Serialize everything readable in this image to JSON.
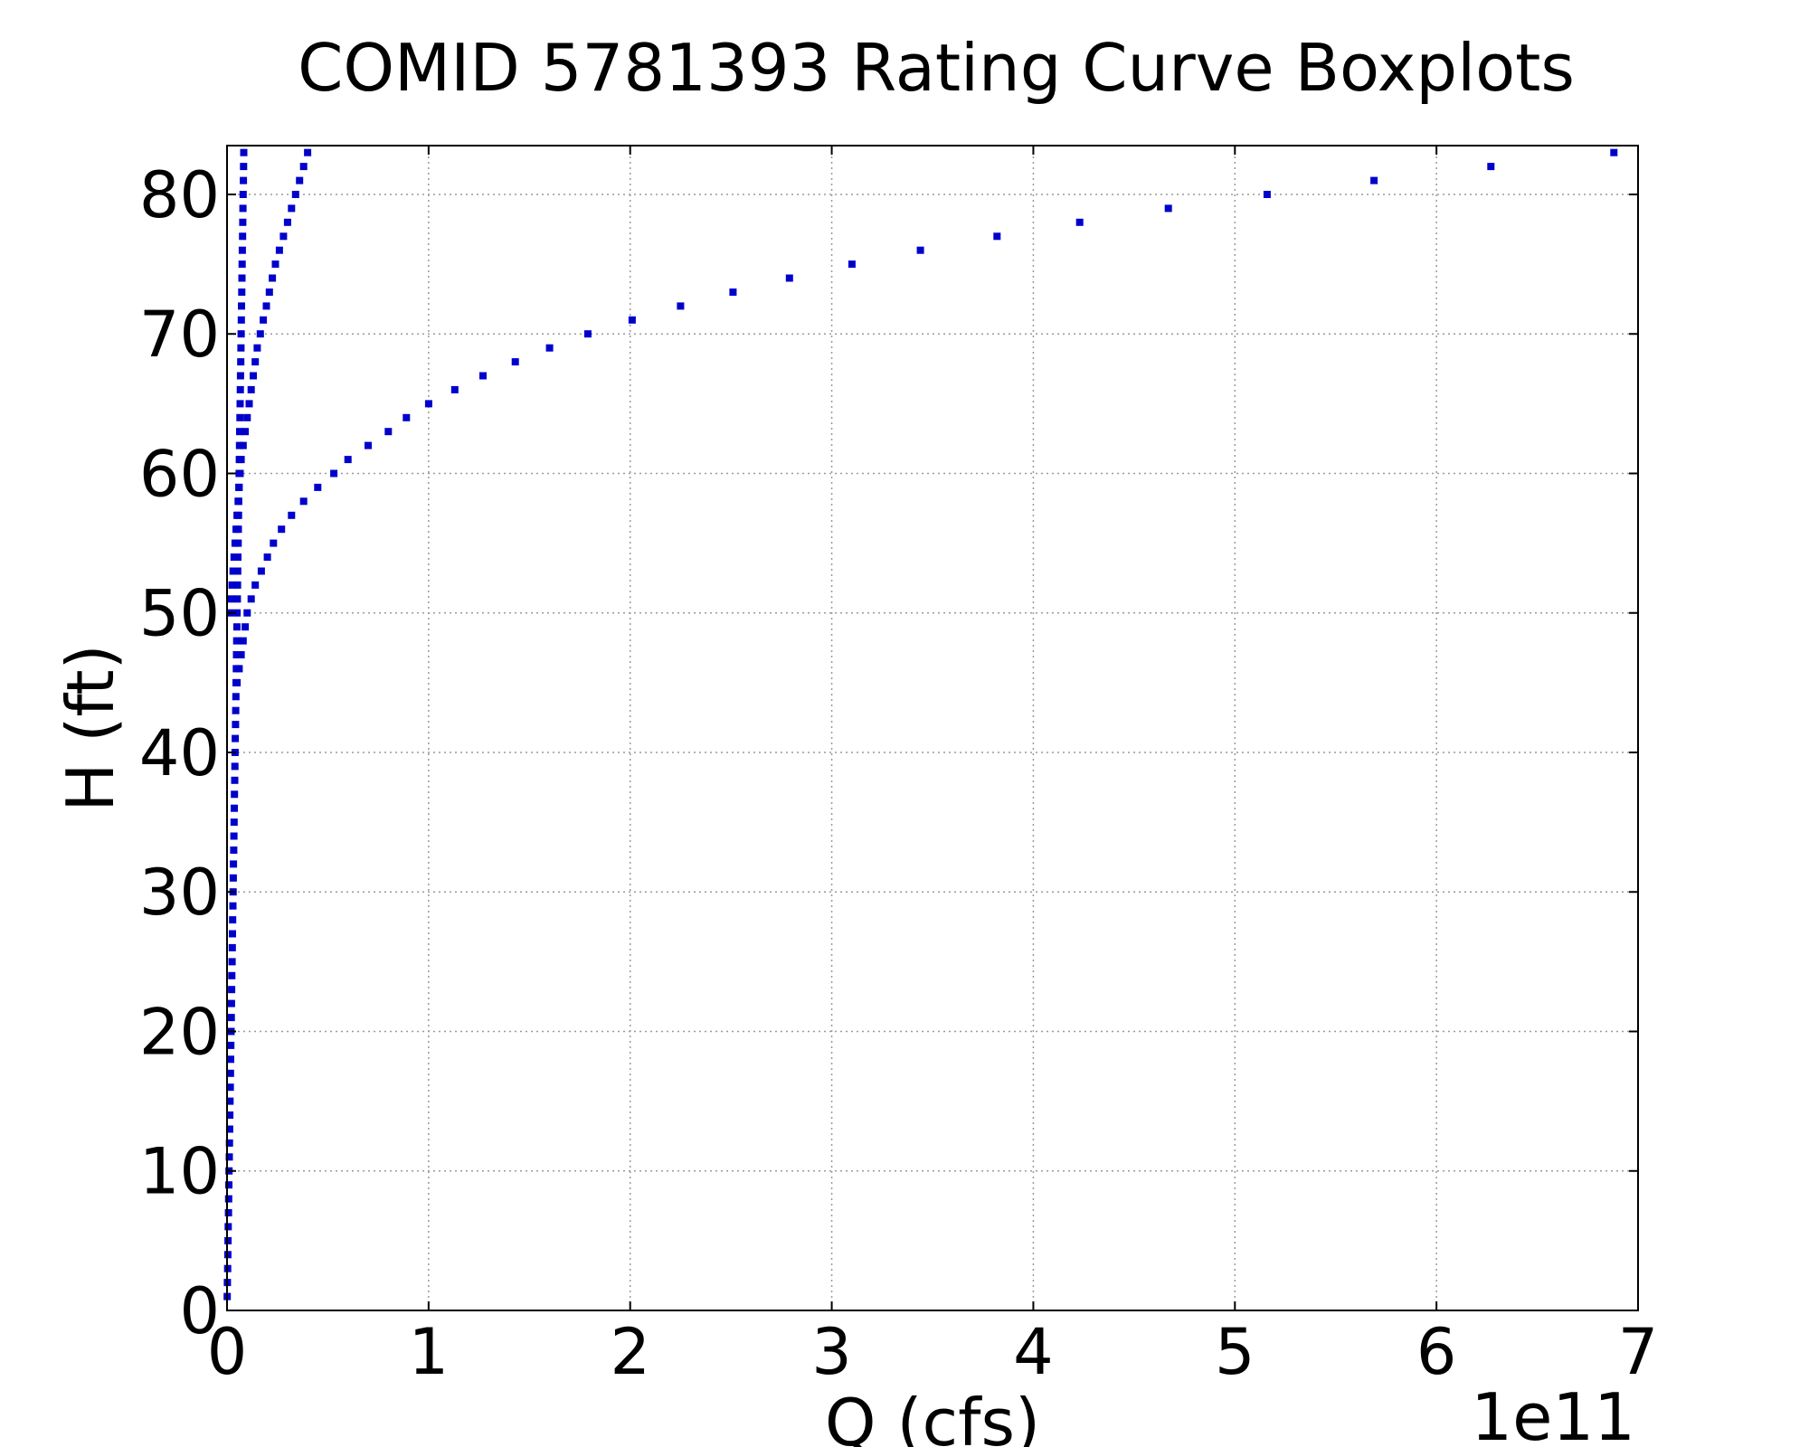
{
  "chart_data": {
    "type": "scatter",
    "title": "COMID 5781393 Rating Curve Boxplots",
    "xlabel": "Q (cfs)",
    "ylabel": "H (ft)",
    "x_offset_label": "1e11",
    "xlim": [
      0,
      7
    ],
    "ylim": [
      0,
      83.5
    ],
    "xticks": [
      "0",
      "1",
      "2",
      "3",
      "4",
      "5",
      "6",
      "7"
    ],
    "yticks": [
      "0",
      "10",
      "20",
      "30",
      "40",
      "50",
      "60",
      "70",
      "80"
    ],
    "grid": true,
    "marker_color": "#0000cc",
    "series": [
      {
        "x": [
          0.001,
          0.002,
          0.003,
          0.004,
          0.005,
          0.006,
          0.007,
          0.008,
          0.009,
          0.01,
          0.011,
          0.012,
          0.013,
          0.014,
          0.015,
          0.016,
          0.017,
          0.018,
          0.019,
          0.02,
          0.021,
          0.022,
          0.023,
          0.024,
          0.025,
          0.026,
          0.027,
          0.028,
          0.029,
          0.03,
          0.031,
          0.032,
          0.033,
          0.034,
          0.035,
          0.036,
          0.037,
          0.038,
          0.039,
          0.04,
          0.041,
          0.042,
          0.043,
          0.044,
          0.045,
          0.046,
          0.047,
          0.048,
          0.049,
          0.05,
          0.051,
          0.052,
          0.053,
          0.054,
          0.055,
          0.056,
          0.057,
          0.058,
          0.059,
          0.06,
          0.061,
          0.062,
          0.063,
          0.064,
          0.065,
          0.066,
          0.067,
          0.068,
          0.069,
          0.07,
          0.071,
          0.072,
          0.073,
          0.074,
          0.075,
          0.076,
          0.077,
          0.078,
          0.079,
          0.08,
          0.081,
          0.082,
          0.083
        ],
        "y": [
          1,
          2,
          3,
          4,
          5,
          6,
          7,
          8,
          9,
          10,
          11,
          12,
          13,
          14,
          15,
          16,
          17,
          18,
          19,
          20,
          21,
          22,
          23,
          24,
          25,
          26,
          27,
          28,
          29,
          30,
          31,
          32,
          33,
          34,
          35,
          36,
          37,
          38,
          39,
          40,
          41,
          42,
          43,
          44,
          45,
          46,
          47,
          48,
          49,
          50,
          51,
          52,
          53,
          54,
          55,
          56,
          57,
          58,
          59,
          60,
          61,
          62,
          63,
          64,
          65,
          66,
          67,
          68,
          69,
          70,
          71,
          72,
          73,
          74,
          75,
          76,
          77,
          78,
          79,
          80,
          81,
          82,
          83
        ]
      },
      {
        "x": [
          0.015,
          0.02,
          0.025,
          0.03,
          0.035,
          0.04,
          0.045,
          0.05,
          0.055,
          0.06,
          0.065,
          0.07,
          0.08,
          0.09,
          0.1,
          0.11,
          0.12,
          0.13,
          0.14,
          0.15,
          0.165,
          0.18,
          0.195,
          0.21,
          0.225,
          0.24,
          0.26,
          0.28,
          0.3,
          0.32,
          0.34,
          0.36,
          0.38,
          0.4
        ],
        "y": [
          50,
          51,
          52,
          53,
          54,
          55,
          56,
          57,
          58,
          59,
          60,
          61,
          62,
          63,
          64,
          65,
          66,
          67,
          68,
          69,
          70,
          71,
          72,
          73,
          74,
          75,
          76,
          77,
          78,
          79,
          80,
          81,
          82,
          83
        ]
      },
      {
        "x": [
          0.05,
          0.06,
          0.07,
          0.08,
          0.09,
          0.1,
          0.12,
          0.14,
          0.17,
          0.2,
          0.23,
          0.27,
          0.32,
          0.38,
          0.45,
          0.53,
          0.6,
          0.7,
          0.8,
          0.89,
          1.0,
          1.13,
          1.27,
          1.43,
          1.6,
          1.79,
          2.01,
          2.25,
          2.51,
          2.79,
          3.1,
          3.44,
          3.82,
          4.23,
          4.67,
          5.16,
          5.69,
          6.27,
          6.88
        ],
        "y": [
          45,
          46,
          47,
          48,
          49,
          50,
          51,
          52,
          53,
          54,
          55,
          56,
          57,
          58,
          59,
          60,
          61,
          62,
          63,
          64,
          65,
          66,
          67,
          68,
          69,
          70,
          71,
          72,
          73,
          74,
          75,
          76,
          77,
          78,
          79,
          80,
          81,
          82,
          83
        ]
      }
    ]
  }
}
